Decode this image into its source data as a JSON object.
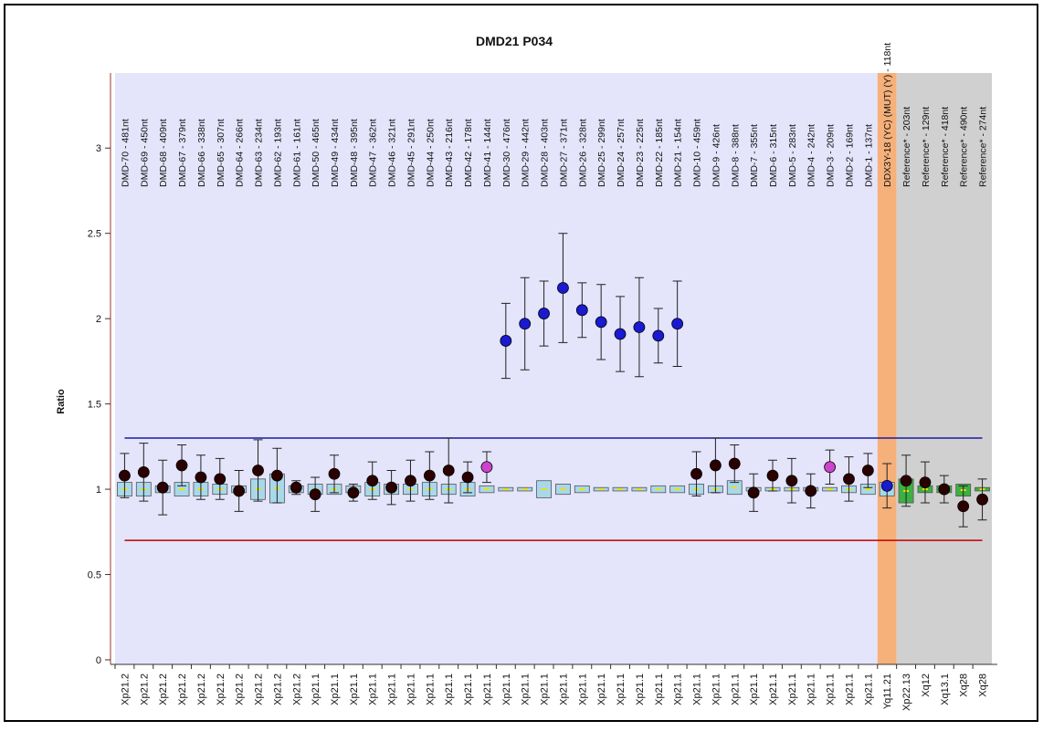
{
  "chart_data": {
    "type": "errorbar",
    "title": "DMD21 P034",
    "y_label": "Ratio",
    "ylim": [
      0,
      3.44
    ],
    "yticks": [
      0,
      0.5,
      1,
      1.5,
      2,
      2.5,
      3
    ],
    "probes": [
      "DMD-70 - 481nt",
      "DMD-69 - 450nt",
      "DMD-68 - 409nt",
      "DMD-67 - 379nt",
      "DMD-66 - 338nt",
      "DMD-65 - 307nt",
      "DMD-64 - 266nt",
      "DMD-63 - 234nt",
      "DMD-62 - 193nt",
      "DMD-61 - 161nt",
      "DMD-50 - 465nt",
      "DMD-49 - 434nt",
      "DMD-48 - 395nt",
      "DMD-47 - 362nt",
      "DMD-46 - 321nt",
      "DMD-45 - 291nt",
      "DMD-44 - 250nt",
      "DMD-43 - 216nt",
      "DMD-42 - 178nt",
      "DMD-41 - 144nt",
      "DMD-30 - 476nt",
      "DMD-29 - 442nt",
      "DMD-28 - 403nt",
      "DMD-27 - 371nt",
      "DMD-26 - 328nt",
      "DMD-25 - 299nt",
      "DMD-24 - 257nt",
      "DMD-23 - 225nt",
      "DMD-22 - 185nt",
      "DMD-21 - 154nt",
      "DMD-10 - 459nt",
      "DMD-9 - 426nt",
      "DMD-8 - 388nt",
      "DMD-7 - 355nt",
      "DMD-6 - 315nt",
      "DMD-5 - 283nt",
      "DMD-4 - 242nt",
      "DMD-3 - 209nt",
      "DMD-2 - 169nt",
      "DMD-1 - 137nt",
      "DDX3Y-18 (YC) (MUT) (Y) - 118nt",
      "Reference* - 203nt",
      "Reference* - 129nt",
      "Reference* - 418nt",
      "Reference* - 490nt",
      "Reference* - 274nt"
    ],
    "categories": [
      "Xp21.2",
      "Xp21.2",
      "Xp21.2",
      "Xp21.2",
      "Xp21.2",
      "Xp21.2",
      "Xp21.2",
      "Xp21.2",
      "Xp21.2",
      "Xp21.2",
      "Xp21.1",
      "Xp21.1",
      "Xp21.1",
      "Xp21.1",
      "Xp21.1",
      "Xp21.1",
      "Xp21.1",
      "Xp21.1",
      "Xp21.1",
      "Xp21.1",
      "Xp21.1",
      "Xp21.1",
      "Xp21.1",
      "Xp21.1",
      "Xp21.1",
      "Xp21.1",
      "Xp21.1",
      "Xp21.1",
      "Xp21.1",
      "Xp21.1",
      "Xp21.1",
      "Xp21.1",
      "Xp21.1",
      "Xp21.1",
      "Xp21.1",
      "Xp21.1",
      "Xp21.1",
      "Xp21.1",
      "Xp21.1",
      "Xp21.1",
      "Yq11.21",
      "Xp22.13",
      "Xq12",
      "Xq13.1",
      "Xq28",
      "Xq28"
    ],
    "values": [
      1.08,
      1.1,
      1.01,
      1.14,
      1.07,
      1.06,
      0.99,
      1.11,
      1.08,
      1.01,
      0.97,
      1.09,
      0.98,
      1.05,
      1.01,
      1.05,
      1.08,
      1.11,
      1.07,
      1.13,
      1.87,
      1.97,
      2.03,
      2.18,
      2.05,
      1.98,
      1.91,
      1.95,
      1.9,
      1.97,
      1.09,
      1.14,
      1.15,
      0.98,
      1.08,
      1.05,
      0.99,
      1.13,
      1.06,
      1.11,
      1.02,
      1.05,
      1.04,
      1.0,
      0.9,
      0.94
    ],
    "errors": [
      0.13,
      0.17,
      0.16,
      0.12,
      0.13,
      0.12,
      0.12,
      0.18,
      0.16,
      0.04,
      0.1,
      0.11,
      0.05,
      0.11,
      0.1,
      0.12,
      0.14,
      0.19,
      0.09,
      0.09,
      0.22,
      0.27,
      0.19,
      0.32,
      0.16,
      0.22,
      0.22,
      0.29,
      0.16,
      0.25,
      0.13,
      0.16,
      0.11,
      0.11,
      0.09,
      0.13,
      0.1,
      0.1,
      0.13,
      0.1,
      0.13,
      0.15,
      0.12,
      0.08,
      0.12,
      0.12
    ],
    "box_low": [
      0.96,
      0.96,
      0.98,
      0.96,
      0.96,
      0.97,
      0.98,
      0.94,
      0.92,
      0.98,
      0.97,
      0.97,
      0.98,
      0.96,
      0.97,
      0.97,
      0.96,
      0.97,
      0.96,
      0.98,
      0.99,
      0.99,
      0.95,
      0.97,
      0.98,
      0.99,
      0.99,
      0.99,
      0.98,
      0.98,
      0.97,
      0.98,
      0.97,
      0.99,
      0.99,
      0.99,
      0.99,
      0.99,
      0.98,
      0.97,
      0.96,
      0.92,
      0.98,
      0.98,
      0.96,
      0.99
    ],
    "box_high": [
      1.04,
      1.04,
      1.02,
      1.04,
      1.04,
      1.03,
      1.02,
      1.06,
      1.09,
      1.02,
      1.03,
      1.03,
      1.02,
      1.04,
      1.03,
      1.03,
      1.04,
      1.03,
      1.04,
      1.02,
      1.01,
      1.01,
      1.05,
      1.03,
      1.02,
      1.01,
      1.01,
      1.01,
      1.02,
      1.02,
      1.03,
      1.02,
      1.05,
      1.01,
      1.01,
      1.01,
      1.01,
      1.01,
      1.02,
      1.03,
      1.04,
      1.06,
      1.02,
      1.02,
      1.03,
      1.01
    ],
    "colors": [
      "#2a0000",
      "#2a0000",
      "#2a0000",
      "#2a0000",
      "#2a0000",
      "#2a0000",
      "#2a0000",
      "#2a0000",
      "#2a0000",
      "#2a0000",
      "#2a0000",
      "#2a0000",
      "#2a0000",
      "#2a0000",
      "#2a0000",
      "#2a0000",
      "#2a0000",
      "#2a0000",
      "#2a0000",
      "#cc44cc",
      "#1a1ad0",
      "#1a1ad0",
      "#1a1ad0",
      "#1a1ad0",
      "#1a1ad0",
      "#1a1ad0",
      "#1a1ad0",
      "#1a1ad0",
      "#1a1ad0",
      "#1a1ad0",
      "#2a0000",
      "#2a0000",
      "#2a0000",
      "#2a0000",
      "#2a0000",
      "#2a0000",
      "#2a0000",
      "#cc44cc",
      "#2a0000",
      "#2a0000",
      "#1a1ad0",
      "#2a0000",
      "#2a0000",
      "#2a0000",
      "#2a0000",
      "#2a0000"
    ],
    "box_colors": {
      "probe": "#a8d8ea",
      "reference": "#3cb043"
    },
    "regions": [
      {
        "from": 0,
        "to": 39,
        "color": "#e4e4fb"
      },
      {
        "from": 40,
        "to": 40,
        "color": "#f6b07a"
      },
      {
        "from": 41,
        "to": 45,
        "color": "#d0d0d0"
      }
    ],
    "thresholds": [
      {
        "value": 1.3,
        "color": "#1a1aa0"
      },
      {
        "value": 0.7,
        "color": "#c00000"
      }
    ]
  }
}
